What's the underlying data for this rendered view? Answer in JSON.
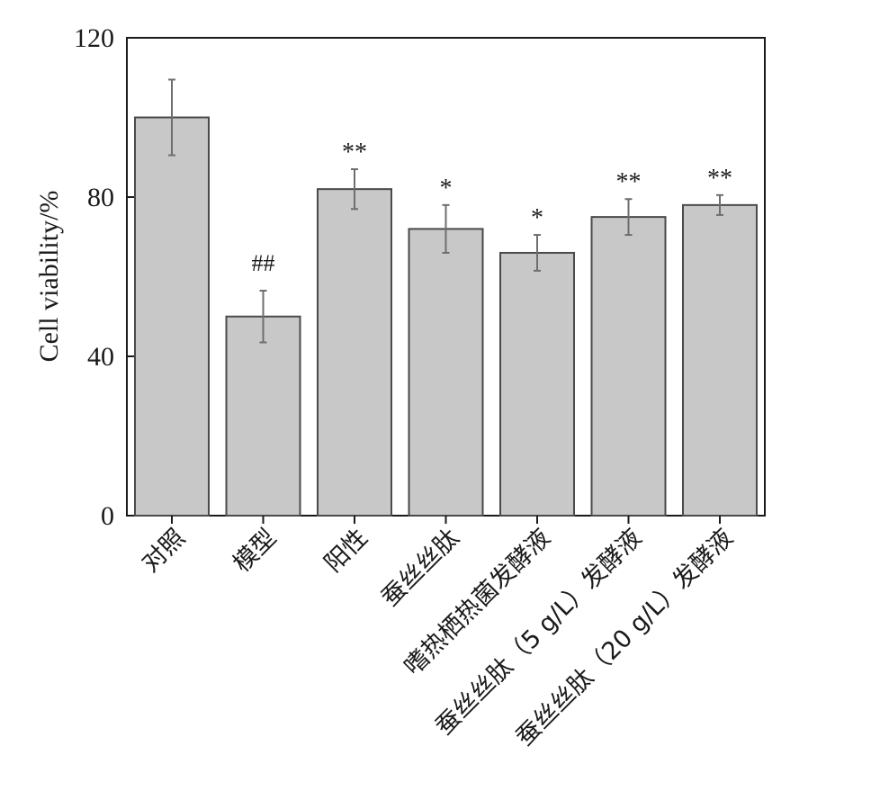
{
  "chart_data": {
    "type": "bar",
    "ylabel": "Cell viability/%",
    "ylim": [
      0,
      120
    ],
    "yticks": [
      "0",
      "40",
      "80",
      "120"
    ],
    "categories": [
      "对照",
      "模型",
      "阳性",
      "蚕丝丝肽",
      "嗜热栖热菌发酵液",
      "蚕丝丝肽（5 g/L）发酵液",
      "蚕丝丝肽（20 g/L）发酵液"
    ],
    "values": [
      100,
      50,
      82,
      72,
      66,
      75,
      78
    ],
    "errors": [
      9.5,
      6.5,
      5,
      6,
      4.5,
      4.5,
      2.5
    ],
    "annotations": [
      "",
      "##",
      "**",
      "*",
      "*",
      "**",
      "**"
    ],
    "colors": {
      "bar_fill": "#c8c8c8",
      "bar_stroke": "#4a4a4a",
      "error_bar": "#6e6e6e",
      "axis": "#1a1a1a"
    },
    "grid": false,
    "legend": "none"
  }
}
